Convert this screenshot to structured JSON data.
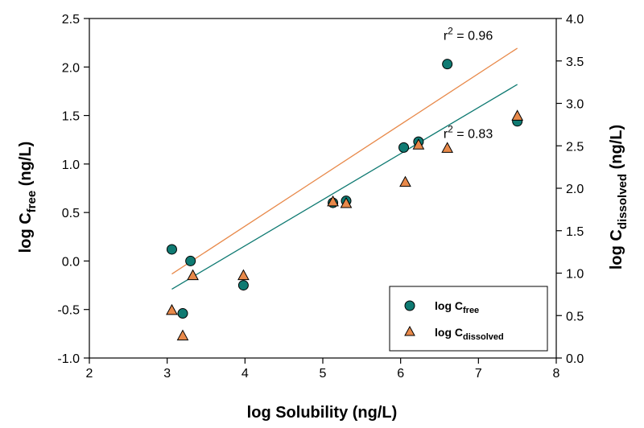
{
  "chart_data": {
    "type": "scatter",
    "xlabel": "log Solubility (ng/L)",
    "ylabel_left": {
      "base": "log C",
      "sub": "free",
      "unit": " (ng/L)"
    },
    "ylabel_right": {
      "base": "log C",
      "sub": "dissolved",
      "unit": " (ng/L)"
    },
    "xlim": [
      2,
      8
    ],
    "ylim_left": [
      -1.0,
      2.5
    ],
    "ylim_right": [
      0.0,
      4.0
    ],
    "x_ticks": [
      "2",
      "3",
      "4",
      "5",
      "6",
      "7",
      "8"
    ],
    "y_left_ticks": [
      "-1.0",
      "-0.5",
      "0.0",
      "0.5",
      "1.0",
      "1.5",
      "2.0",
      "2.5"
    ],
    "y_right_ticks": [
      "0.0",
      "0.5",
      "1.0",
      "1.5",
      "2.0",
      "2.5",
      "3.0",
      "3.5",
      "4.0"
    ],
    "grid": false,
    "legend_position": "bottom-right",
    "series": [
      {
        "name_base": "log C",
        "name_sub": "free",
        "axis": "left",
        "marker": "circle",
        "color": "#0f7a72",
        "x": [
          3.06,
          3.2,
          3.3,
          3.98,
          5.13,
          5.3,
          6.04,
          6.23,
          6.6,
          7.5
        ],
        "y": [
          0.12,
          -0.54,
          0.0,
          -0.25,
          0.6,
          0.62,
          1.17,
          1.23,
          2.03,
          1.44
        ],
        "fit": {
          "x": [
            3.06,
            7.5
          ],
          "y": [
            -0.29,
            1.82
          ]
        }
      },
      {
        "name_base": "log C",
        "name_sub": "dissolved",
        "axis": "right",
        "marker": "triangle",
        "color": "#e8894a",
        "x": [
          3.06,
          3.2,
          3.33,
          3.98,
          5.13,
          5.3,
          6.06,
          6.23,
          6.6,
          7.5
        ],
        "y": [
          0.56,
          0.26,
          0.97,
          0.97,
          1.84,
          1.82,
          2.07,
          2.51,
          2.47,
          2.85
        ],
        "fit": {
          "x": [
            3.06,
            7.5
          ],
          "y": [
            0.99,
            3.65
          ]
        }
      }
    ],
    "annotations": [
      {
        "text_base": "r",
        "text_sup": "2",
        "text_rest": " = 0.96",
        "x": 6.55,
        "y_left": 2.28
      },
      {
        "text_base": "r",
        "text_sup": "2",
        "text_rest": " = 0.83",
        "x": 6.55,
        "y_left": 1.27
      }
    ]
  }
}
